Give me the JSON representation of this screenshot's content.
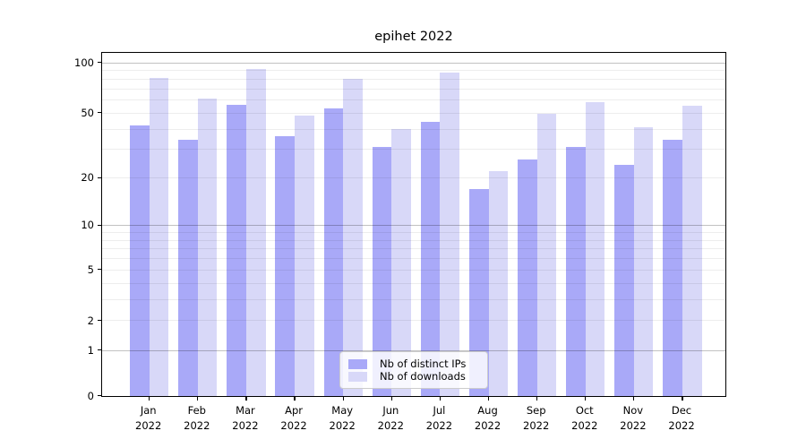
{
  "chart_data": {
    "type": "bar",
    "title": "epihet 2022",
    "categories": [
      "Jan 2022",
      "Feb 2022",
      "Mar 2022",
      "Apr 2022",
      "May 2022",
      "Jun 2022",
      "Jul 2022",
      "Aug 2022",
      "Sep 2022",
      "Oct 2022",
      "Nov 2022",
      "Dec 2022"
    ],
    "series": [
      {
        "name": "Nb of distinct IPs",
        "color": "#a9a9f8",
        "values": [
          42,
          34,
          56,
          36,
          53,
          31,
          44,
          17,
          26,
          31,
          24,
          34
        ]
      },
      {
        "name": "Nb of downloads",
        "color": "#d8d8f8",
        "values": [
          81,
          61,
          92,
          48,
          80,
          40,
          87,
          22,
          49,
          58,
          41,
          55
        ]
      }
    ],
    "y_axis": {
      "scale": "log1p",
      "tick_labels": [
        0,
        1,
        2,
        5,
        10,
        20,
        50,
        100
      ],
      "major_gridlines": [
        1,
        10,
        100
      ],
      "minor_gridlines": [
        2,
        3,
        4,
        5,
        6,
        7,
        8,
        9,
        20,
        30,
        40,
        50,
        60,
        70,
        80,
        90
      ],
      "ylim": [
        0,
        115
      ]
    },
    "legend": {
      "position": "lower center"
    },
    "grid": true
  }
}
